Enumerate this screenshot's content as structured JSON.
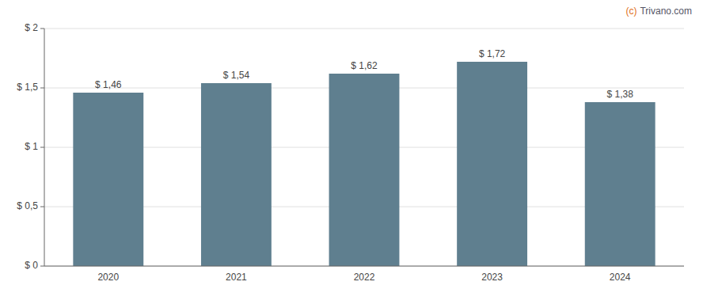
{
  "chart_data": {
    "type": "bar",
    "categories": [
      "2020",
      "2021",
      "2022",
      "2023",
      "2024"
    ],
    "values": [
      1.46,
      1.54,
      1.62,
      1.72,
      1.38
    ],
    "value_labels": [
      "$ 1,46",
      "$ 1,54",
      "$ 1,62",
      "$ 1,72",
      "$ 1,38"
    ],
    "data_labels": true,
    "color": "#5f7f8f",
    "ylim": [
      0,
      2.0
    ],
    "yticks": [
      {
        "value": 0,
        "label": "$ 0"
      },
      {
        "value": 0.5,
        "label": "$ 0,5"
      },
      {
        "value": 1.0,
        "label": "$ 1"
      },
      {
        "value": 1.5,
        "label": "$ 1,5"
      },
      {
        "value": 2.0,
        "label": "$ 2"
      }
    ],
    "grid": true,
    "annotations": [
      {
        "text": "(c)",
        "color": "#e07020"
      },
      {
        "text": "Trivano.com",
        "color": "#555566"
      }
    ]
  }
}
